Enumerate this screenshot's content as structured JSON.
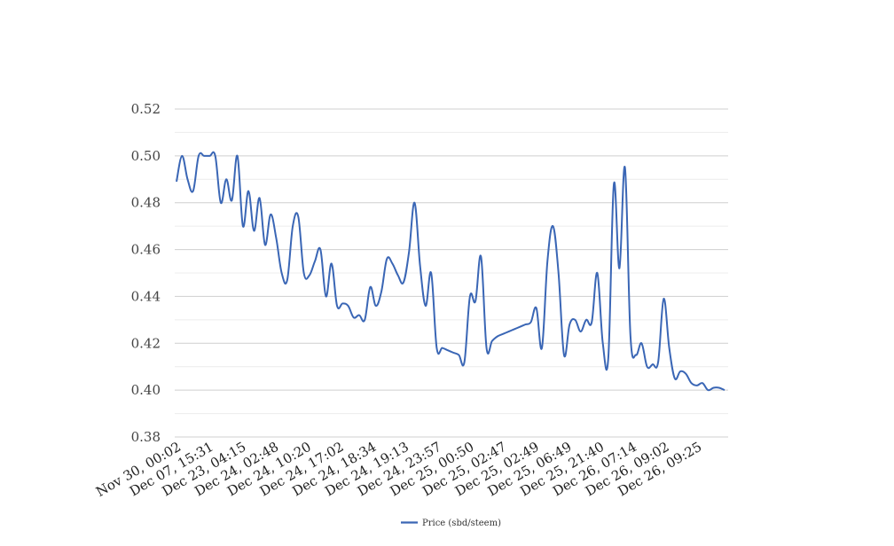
{
  "chart_data": {
    "type": "line",
    "title": "",
    "xlabel": "",
    "ylabel": "",
    "ylim": [
      0.38,
      0.52
    ],
    "yticks": [
      "0.52",
      "0.50",
      "0.48",
      "0.46",
      "0.44",
      "0.42",
      "0.40",
      "0.38"
    ],
    "minor_grid": true,
    "legend_position": "bottom-center",
    "x_tick_labels": [
      "Nov 30, 00:02",
      "Dec 07, 15:31",
      "Dec 23, 04:15",
      "Dec 24, 02:48",
      "Dec 24, 10:20",
      "Dec 24, 17:02",
      "Dec 24, 18:34",
      "Dec 24, 19:13",
      "Dec 24, 23:57",
      "Dec 25, 00:50",
      "Dec 25, 02:47",
      "Dec 25, 02:49",
      "Dec 25, 06:49",
      "Dec 25, 21:40",
      "Dec 26, 07:14",
      "Dec 26, 09:02",
      "Dec 26, 09:25"
    ],
    "series": [
      {
        "name": "Price (sbd/steem)",
        "color": "#3a66b5",
        "values": [
          0.489,
          0.5,
          0.49,
          0.485,
          0.5,
          0.5,
          0.5,
          0.5,
          0.48,
          0.49,
          0.481,
          0.5,
          0.47,
          0.485,
          0.468,
          0.482,
          0.462,
          0.475,
          0.465,
          0.45,
          0.447,
          0.47,
          0.474,
          0.45,
          0.449,
          0.455,
          0.46,
          0.44,
          0.454,
          0.436,
          0.437,
          0.436,
          0.431,
          0.432,
          0.43,
          0.444,
          0.436,
          0.442,
          0.456,
          0.454,
          0.449,
          0.446,
          0.459,
          0.48,
          0.453,
          0.436,
          0.45,
          0.418,
          0.418,
          0.417,
          0.416,
          0.415,
          0.412,
          0.44,
          0.438,
          0.457,
          0.418,
          0.421,
          0.423,
          0.424,
          0.425,
          0.426,
          0.427,
          0.428,
          0.429,
          0.435,
          0.418,
          0.455,
          0.47,
          0.45,
          0.415,
          0.428,
          0.43,
          0.425,
          0.43,
          0.429,
          0.45,
          0.42,
          0.414,
          0.488,
          0.452,
          0.495,
          0.423,
          0.415,
          0.42,
          0.41,
          0.411,
          0.412,
          0.439,
          0.418,
          0.405,
          0.408,
          0.407,
          0.403,
          0.402,
          0.403,
          0.4,
          0.401,
          0.401,
          0.4
        ]
      }
    ]
  }
}
